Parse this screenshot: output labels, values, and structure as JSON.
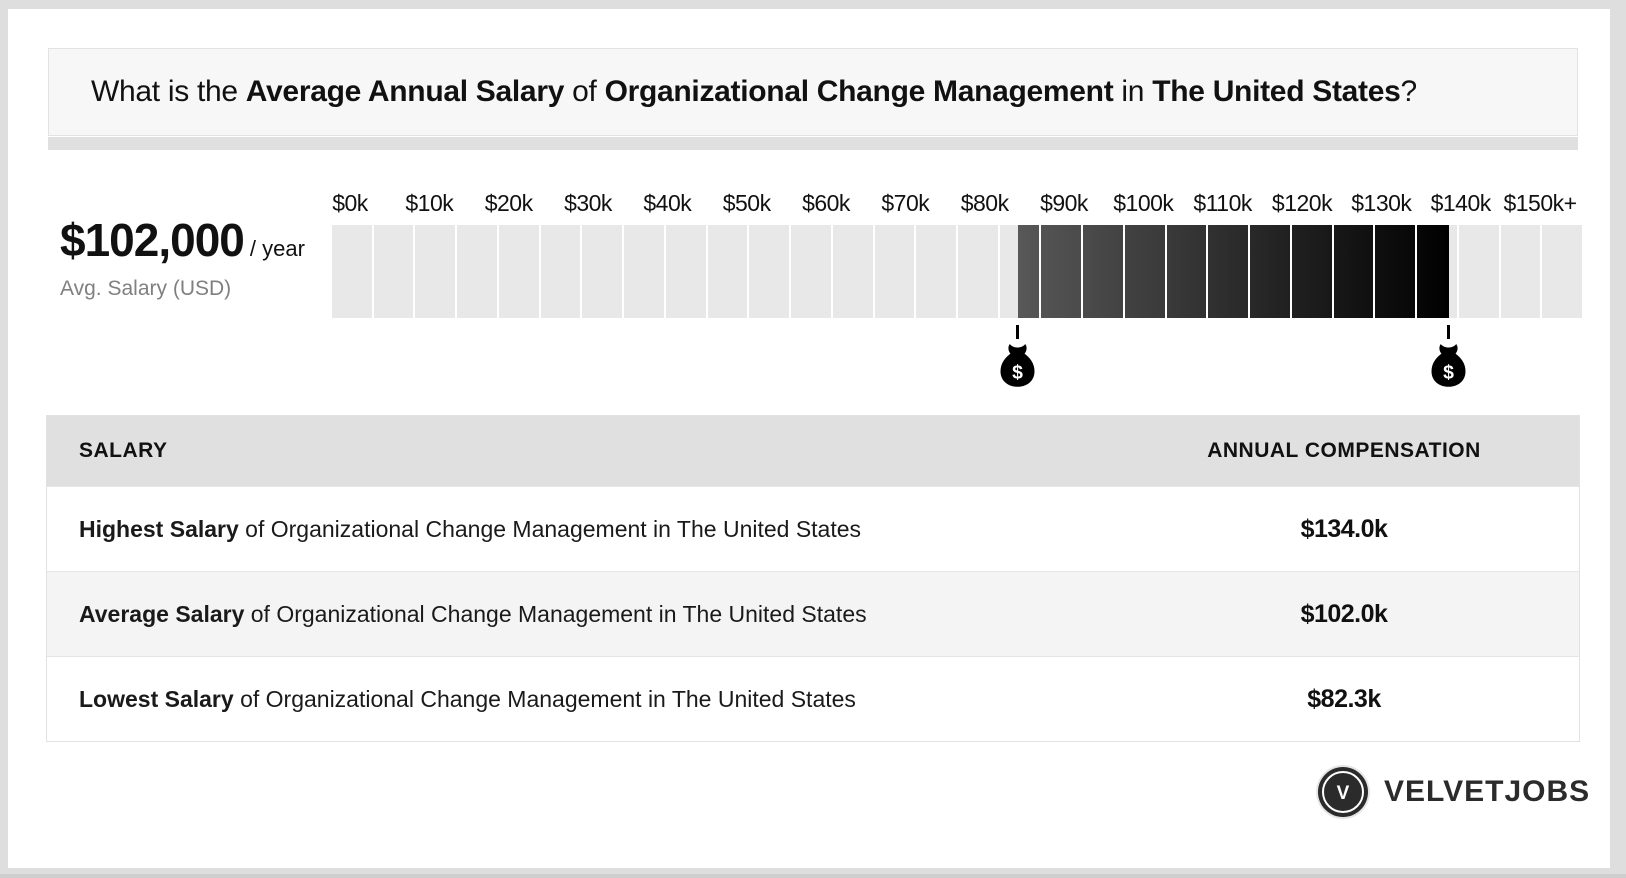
{
  "title": {
    "parts": [
      {
        "text": "What is the ",
        "bold": false
      },
      {
        "text": "Average Annual Salary",
        "bold": true
      },
      {
        "text": " of ",
        "bold": false
      },
      {
        "text": "Organizational Change Management",
        "bold": true
      },
      {
        "text": " in ",
        "bold": false
      },
      {
        "text": "The United States",
        "bold": true
      },
      {
        "text": "?",
        "bold": false
      }
    ]
  },
  "stat": {
    "amount": "$102,000",
    "per": "/ year",
    "caption": "Avg. Salary (USD)"
  },
  "chart_data": {
    "type": "bar",
    "subtype": "salary-range-scale",
    "x_tick_labels": [
      "$0k",
      "$10k",
      "$20k",
      "$30k",
      "$40k",
      "$50k",
      "$60k",
      "$70k",
      "$80k",
      "$90k",
      "$100k",
      "$110k",
      "$120k",
      "$130k",
      "$140k",
      "$150k+"
    ],
    "axis_range_k": [
      0,
      150
    ],
    "segment_size_k": 5,
    "values_k": {
      "lowest": 82.3,
      "average": 102.0,
      "highest": 134.0
    },
    "markers": [
      {
        "name": "lowest-salary-marker",
        "value_k": 82.3,
        "icon": "money-bag-icon"
      },
      {
        "name": "highest-salary-marker",
        "value_k": 134.0,
        "icon": "money-bag-icon"
      }
    ],
    "colors": {
      "track": "#e8e8e8",
      "highlight_start": "#585858",
      "highlight_end": "#000000"
    },
    "legend": "none",
    "grid": "off"
  },
  "table": {
    "headers": [
      "SALARY",
      "ANNUAL COMPENSATION"
    ],
    "rows": [
      {
        "label_bold": "Highest Salary",
        "label_rest": " of Organizational Change Management in The United States",
        "value": "$134.0k"
      },
      {
        "label_bold": "Average Salary",
        "label_rest": " of Organizational Change Management in The United States",
        "value": "$102.0k"
      },
      {
        "label_bold": "Lowest Salary",
        "label_rest": " of Organizational Change Management in The United States",
        "value": "$82.3k"
      }
    ]
  },
  "footer": {
    "brand": "VELVETJOBS",
    "brand_initial": "V",
    "brand_color": "#2b2b2b"
  },
  "icons": {
    "marker": "money-bag-icon",
    "logo": "v-badge-icon"
  }
}
